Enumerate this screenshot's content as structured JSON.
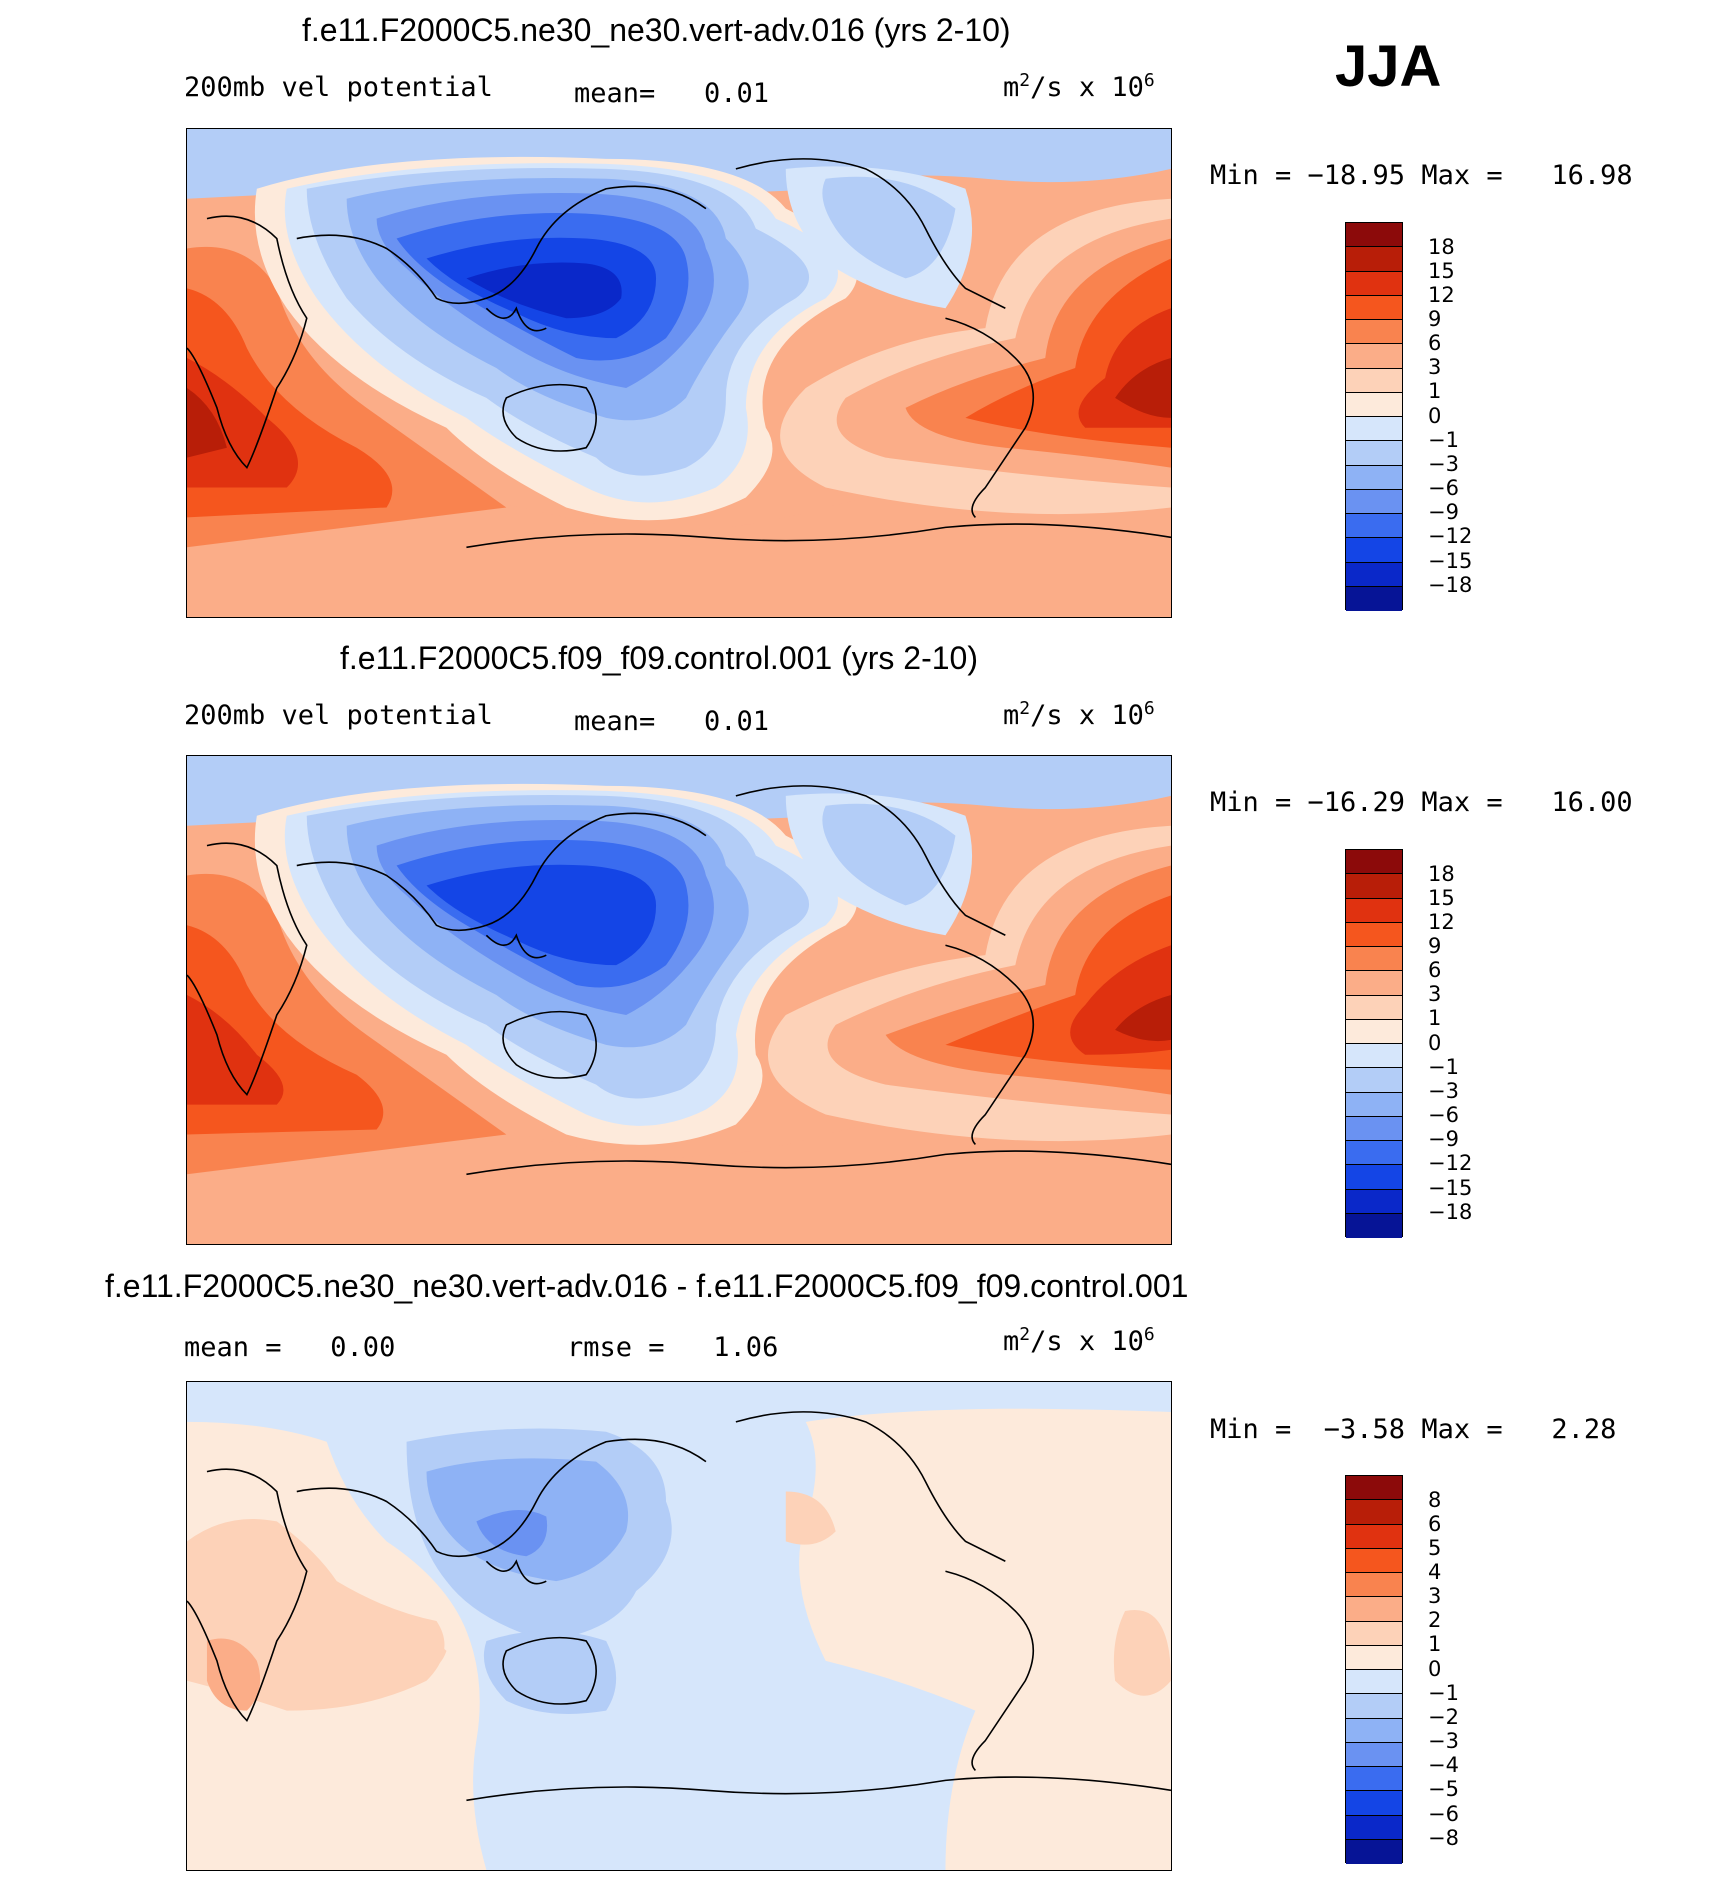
{
  "season": "JJA",
  "panels": [
    {
      "title": "f.e11.F2000C5.ne30_ne30.vert-adv.016 (yrs 2-10)",
      "left_label": "200mb vel potential",
      "mid_label": "mean=   0.01",
      "units_base": "m",
      "units_exp": "2",
      "units_mid": "/s x 10",
      "units_exp2": "6",
      "minmax": "Min = −18.95 Max =   16.98",
      "scale": [
        "18",
        "15",
        "12",
        "9",
        "6",
        "3",
        "1",
        "0",
        "−1",
        "−3",
        "−6",
        "−9",
        "−12",
        "−15",
        "−18"
      ]
    },
    {
      "title": "f.e11.F2000C5.f09_f09.control.001 (yrs 2-10)",
      "left_label": "200mb vel potential",
      "mid_label": "mean=   0.01",
      "units_base": "m",
      "units_exp": "2",
      "units_mid": "/s x 10",
      "units_exp2": "6",
      "minmax": "Min = −16.29 Max =   16.00",
      "scale": [
        "18",
        "15",
        "12",
        "9",
        "6",
        "3",
        "1",
        "0",
        "−1",
        "−3",
        "−6",
        "−9",
        "−12",
        "−15",
        "−18"
      ]
    },
    {
      "title": "f.e11.F2000C5.ne30_ne30.vert-adv.016 - f.e11.F2000C5.f09_f09.control.001",
      "left_label": "mean =   0.00",
      "mid_label": "rmse =   1.06",
      "units_base": "m",
      "units_exp": "2",
      "units_mid": "/s x 10",
      "units_exp2": "6",
      "minmax": "Min =  −3.58 Max =   2.28",
      "scale": [
        "8",
        "6",
        "5",
        "4",
        "3",
        "2",
        "1",
        "0",
        "−1",
        "−2",
        "−3",
        "−4",
        "−5",
        "−6",
        "−8"
      ]
    }
  ],
  "colorbar_colors": [
    "#8c0a0a",
    "#b81e08",
    "#e03210",
    "#f5561e",
    "#f9834f",
    "#fbad88",
    "#fdd2b8",
    "#fdeadb",
    "#d6e6fb",
    "#b3cdf7",
    "#8eb2f5",
    "#6a92f2",
    "#3a6cf0",
    "#1445e6",
    "#0a28c9",
    "#061496"
  ],
  "map_field_colors": {
    "deep_red": "#b81e08",
    "red": "#e03210",
    "orange": "#f5561e",
    "salmon": "#f9834f",
    "light_salmon": "#fbad88",
    "peach": "#fdd2b8",
    "cream": "#fdeadb",
    "pale_blue": "#d6e6fb",
    "light_blue": "#b3cdf7",
    "mid_blue": "#8eb2f5",
    "blue": "#6a92f2",
    "strong_blue": "#3a6cf0",
    "deep_blue": "#1445e6",
    "navy": "#0a28c9"
  }
}
